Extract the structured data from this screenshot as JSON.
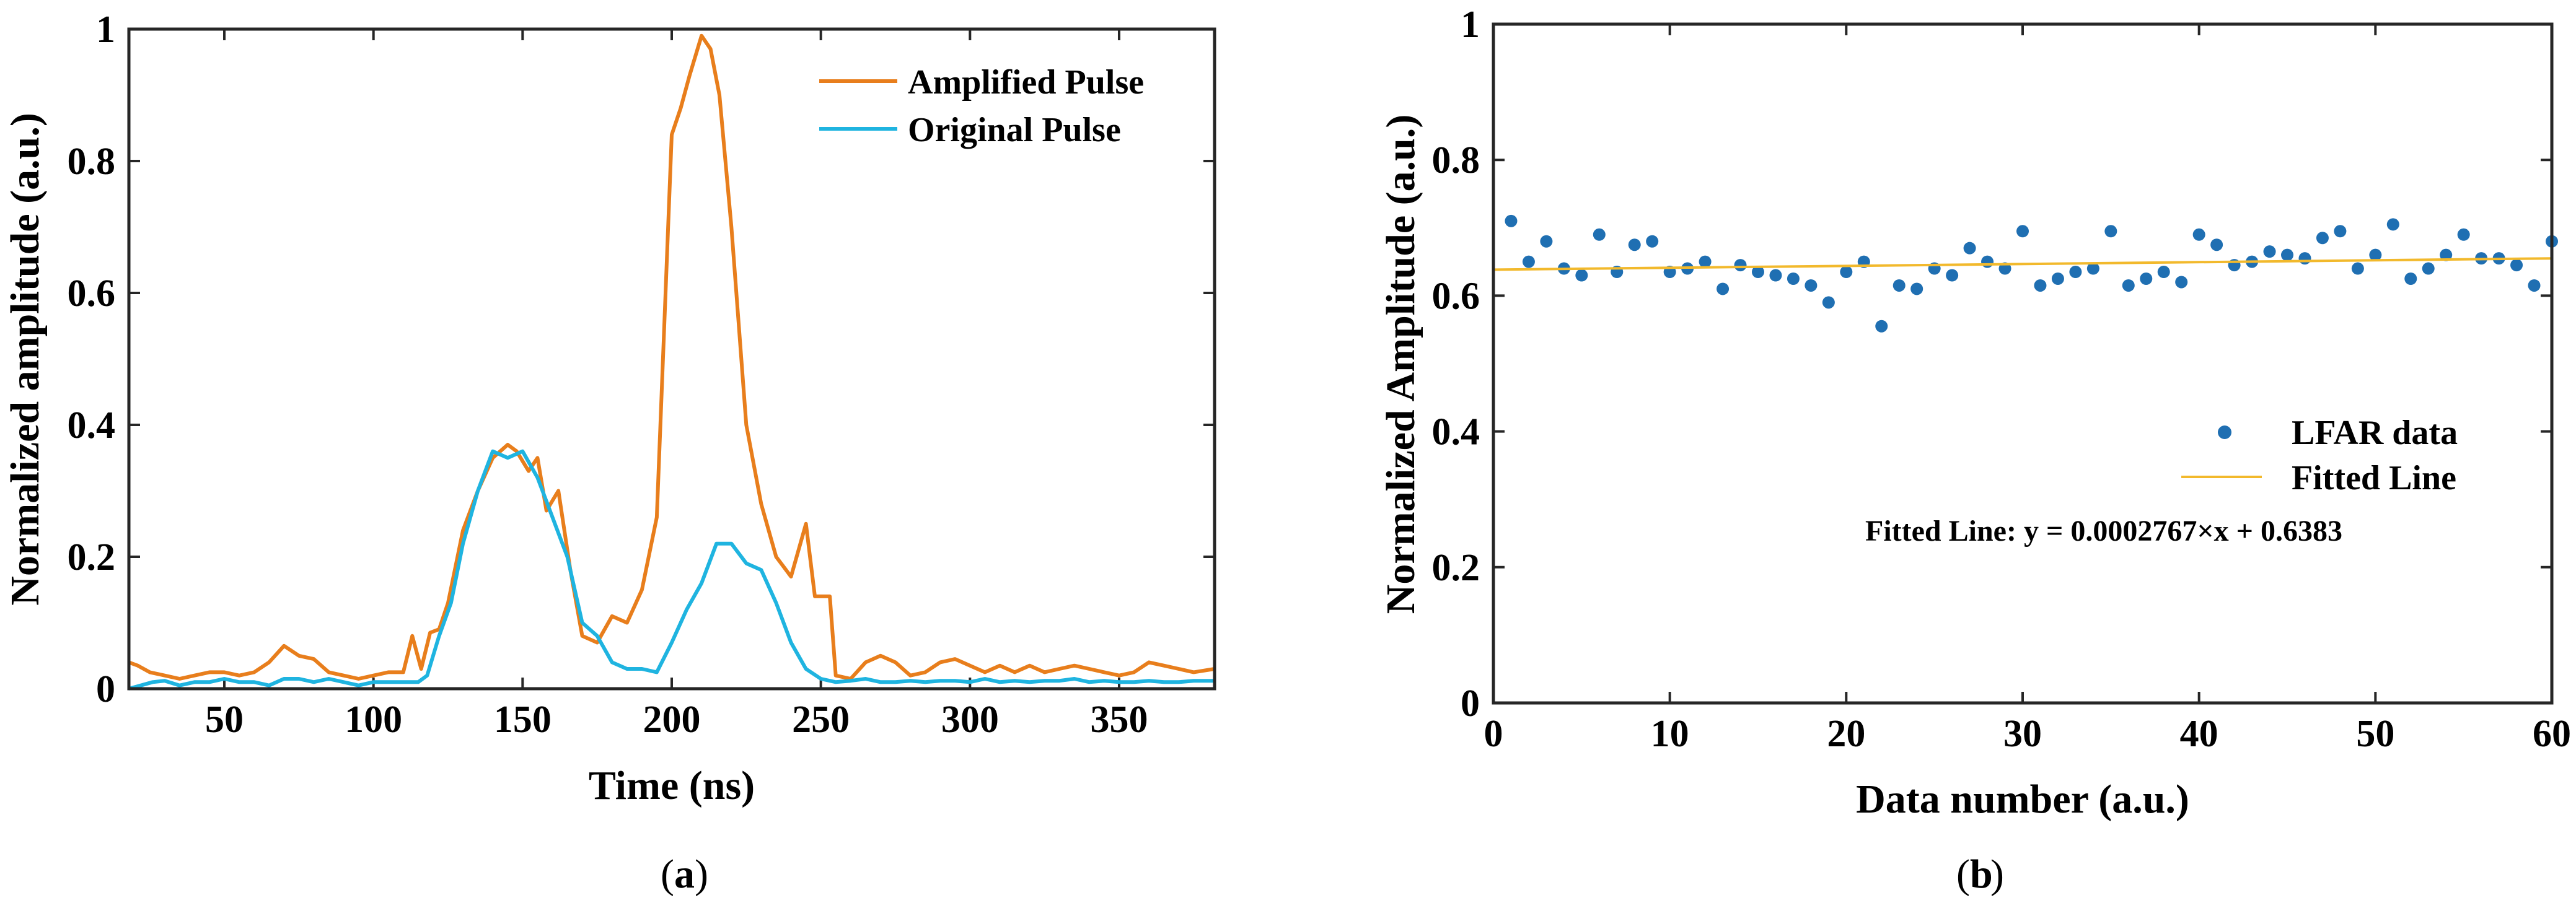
{
  "chart_data": [
    {
      "type": "line",
      "panel_label": "a",
      "title": "",
      "xlabel": "Time (ns)",
      "ylabel": "Normalized amplitude (a.u.)",
      "xlim": [
        18,
        382
      ],
      "ylim": [
        0,
        1
      ],
      "xticks": [
        50,
        100,
        150,
        200,
        250,
        300,
        350
      ],
      "yticks": [
        0,
        0.2,
        0.4,
        0.6,
        0.8,
        1
      ],
      "ytick_labels": [
        "0",
        "0.2",
        "0.4",
        "0.6",
        "0.8",
        "1"
      ],
      "grid": false,
      "legend_position": "top-right",
      "series": [
        {
          "name": "Amplified Pulse",
          "color": "#E87E1C",
          "x": [
            18,
            21,
            25,
            30,
            35,
            40,
            45,
            50,
            55,
            60,
            65,
            70,
            75,
            80,
            85,
            90,
            95,
            100,
            105,
            110,
            113,
            116,
            119,
            122,
            125,
            130,
            135,
            140,
            145,
            148,
            152,
            155,
            158,
            162,
            166,
            170,
            175,
            180,
            185,
            190,
            195,
            200,
            203,
            206,
            210,
            213,
            216,
            220,
            225,
            230,
            235,
            240,
            245,
            248,
            250,
            253,
            255,
            260,
            265,
            270,
            275,
            280,
            285,
            290,
            295,
            300,
            305,
            310,
            315,
            320,
            325,
            330,
            335,
            340,
            345,
            350,
            355,
            360,
            365,
            370,
            375,
            382
          ],
          "values": [
            0.04,
            0.035,
            0.025,
            0.02,
            0.015,
            0.02,
            0.025,
            0.025,
            0.02,
            0.025,
            0.04,
            0.065,
            0.05,
            0.045,
            0.025,
            0.02,
            0.015,
            0.02,
            0.025,
            0.025,
            0.08,
            0.03,
            0.085,
            0.09,
            0.13,
            0.24,
            0.3,
            0.35,
            0.37,
            0.36,
            0.33,
            0.35,
            0.27,
            0.3,
            0.18,
            0.08,
            0.07,
            0.11,
            0.1,
            0.15,
            0.26,
            0.84,
            0.88,
            0.93,
            0.99,
            0.97,
            0.9,
            0.7,
            0.4,
            0.28,
            0.2,
            0.17,
            0.25,
            0.14,
            0.14,
            0.14,
            0.02,
            0.015,
            0.04,
            0.05,
            0.04,
            0.02,
            0.025,
            0.04,
            0.045,
            0.035,
            0.025,
            0.035,
            0.025,
            0.035,
            0.025,
            0.03,
            0.035,
            0.03,
            0.025,
            0.02,
            0.025,
            0.04,
            0.035,
            0.03,
            0.025,
            0.03
          ]
        },
        {
          "name": "Original Pulse",
          "color": "#1FB4E0",
          "x": [
            18,
            22,
            26,
            30,
            35,
            40,
            45,
            50,
            55,
            60,
            65,
            70,
            75,
            80,
            85,
            90,
            95,
            100,
            105,
            110,
            115,
            118,
            122,
            126,
            130,
            135,
            140,
            145,
            150,
            155,
            160,
            165,
            170,
            175,
            180,
            185,
            190,
            195,
            200,
            205,
            210,
            215,
            220,
            225,
            230,
            235,
            240,
            245,
            250,
            255,
            260,
            265,
            270,
            275,
            280,
            285,
            290,
            295,
            300,
            305,
            310,
            315,
            320,
            325,
            330,
            335,
            340,
            345,
            350,
            355,
            360,
            365,
            370,
            375,
            382
          ],
          "values": [
            0.0,
            0.005,
            0.01,
            0.012,
            0.005,
            0.01,
            0.01,
            0.015,
            0.01,
            0.01,
            0.005,
            0.015,
            0.015,
            0.01,
            0.015,
            0.01,
            0.005,
            0.01,
            0.01,
            0.01,
            0.01,
            0.02,
            0.08,
            0.13,
            0.22,
            0.3,
            0.36,
            0.35,
            0.36,
            0.32,
            0.26,
            0.2,
            0.1,
            0.08,
            0.04,
            0.03,
            0.03,
            0.025,
            0.07,
            0.12,
            0.16,
            0.22,
            0.22,
            0.19,
            0.18,
            0.13,
            0.07,
            0.03,
            0.015,
            0.01,
            0.012,
            0.015,
            0.01,
            0.01,
            0.012,
            0.01,
            0.012,
            0.012,
            0.01,
            0.015,
            0.01,
            0.012,
            0.01,
            0.012,
            0.012,
            0.015,
            0.01,
            0.012,
            0.01,
            0.01,
            0.012,
            0.01,
            0.01,
            0.012,
            0.012
          ]
        }
      ]
    },
    {
      "type": "scatter",
      "panel_label": "b",
      "title": "",
      "xlabel": "Data number (a.u.)",
      "ylabel": "Normalized Amplitude (a.u.)",
      "xlim": [
        0,
        60
      ],
      "ylim": [
        0,
        1
      ],
      "xticks": [
        0,
        10,
        20,
        30,
        40,
        50,
        60
      ],
      "yticks": [
        0,
        0.2,
        0.4,
        0.6,
        0.8,
        1
      ],
      "ytick_labels": [
        "0",
        "0.2",
        "0.4",
        "0.6",
        "0.8",
        "1"
      ],
      "grid": false,
      "legend_position": "bottom-right",
      "series": [
        {
          "name": "LFAR data",
          "color": "#1F6FB2",
          "marker": "dot",
          "x": [
            1,
            2,
            3,
            4,
            5,
            6,
            7,
            8,
            9,
            10,
            11,
            12,
            13,
            14,
            15,
            16,
            17,
            18,
            19,
            20,
            21,
            22,
            23,
            24,
            25,
            26,
            27,
            28,
            29,
            30,
            31,
            32,
            33,
            34,
            35,
            36,
            37,
            38,
            39,
            40,
            41,
            42,
            43,
            44,
            45,
            46,
            47,
            48,
            49,
            50,
            51,
            52,
            53,
            54,
            55,
            56,
            57,
            58,
            59,
            60
          ],
          "values": [
            0.71,
            0.65,
            0.68,
            0.64,
            0.63,
            0.69,
            0.635,
            0.675,
            0.68,
            0.635,
            0.64,
            0.65,
            0.61,
            0.645,
            0.635,
            0.63,
            0.625,
            0.615,
            0.59,
            0.635,
            0.65,
            0.555,
            0.615,
            0.61,
            0.64,
            0.63,
            0.67,
            0.65,
            0.64,
            0.695,
            0.615,
            0.625,
            0.635,
            0.64,
            0.695,
            0.615,
            0.625,
            0.635,
            0.62,
            0.69,
            0.675,
            0.645,
            0.65,
            0.665,
            0.66,
            0.655,
            0.685,
            0.695,
            0.64,
            0.66,
            0.705,
            0.625,
            0.64,
            0.66,
            0.69,
            0.655,
            0.655,
            0.645,
            0.615,
            0.68
          ]
        },
        {
          "name": "Fitted Line",
          "color": "#F2B92C",
          "x": [
            0,
            60
          ],
          "values": [
            0.6383,
            0.6549
          ]
        }
      ],
      "annotation": "Fitted Line:  y = 0.0002767×x + 0.6383"
    }
  ]
}
